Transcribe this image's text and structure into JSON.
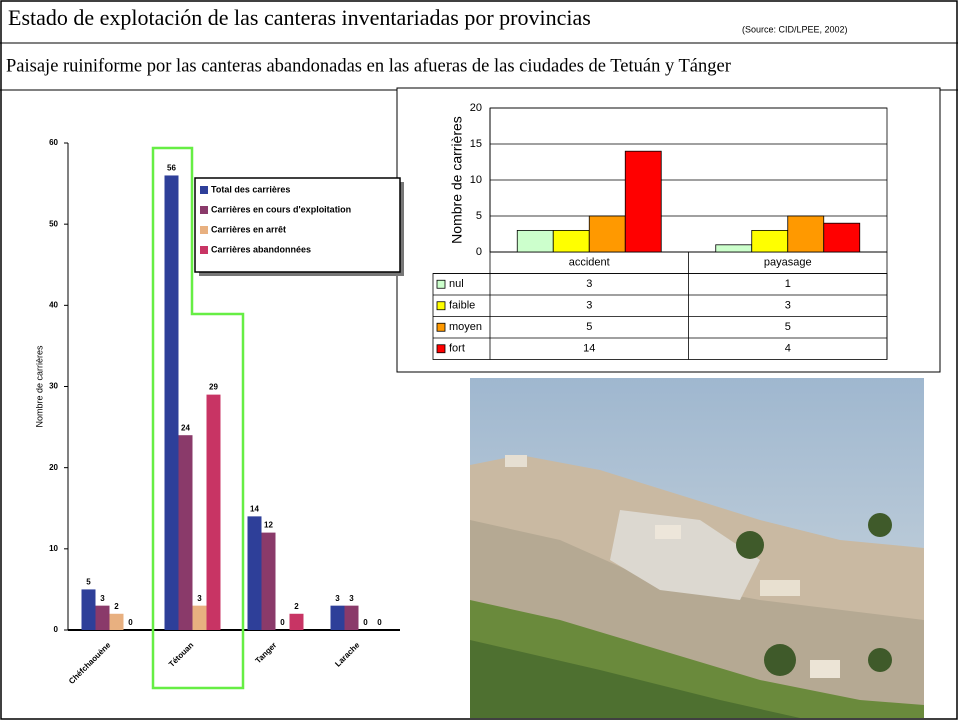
{
  "title": "Estado de explotación de las canteras inventariadas por provincias",
  "source": "(Source: CID/LPEE, 2002)",
  "subtitle": "Paisaje ruiniforme por las canteras abandonadas en las afueras de las ciudades de Tetuán y Tánger",
  "chart_data": [
    {
      "type": "bar",
      "ylabel": "Nombre de carrières",
      "categories": [
        "Chéfchaouène",
        "Tétouan",
        "Tanger",
        "Larache"
      ],
      "series": [
        {
          "name": "Total des carrières",
          "color": "#2e3f99",
          "values": [
            5,
            56,
            14,
            3
          ]
        },
        {
          "name": "Carrières en cours d'exploitation",
          "color": "#8a3a6a",
          "values": [
            3,
            24,
            12,
            3
          ]
        },
        {
          "name": "Carrières en arrêt",
          "color": "#e8b080",
          "values": [
            2,
            3,
            0,
            0
          ]
        },
        {
          "name": "Carrières abandonnées",
          "color": "#c83464",
          "values": [
            0,
            29,
            2,
            0
          ]
        }
      ],
      "ylim": [
        0,
        60
      ],
      "yticks": [
        0,
        10,
        20,
        30,
        40,
        50,
        60
      ],
      "grid": false
    },
    {
      "type": "bar",
      "ylabel": "Nombre de carrières",
      "categories": [
        "accident",
        "payasage"
      ],
      "series": [
        {
          "name": "nul",
          "color": "#ccffcc",
          "values": [
            3,
            1
          ]
        },
        {
          "name": "faible",
          "color": "#ffff00",
          "values": [
            3,
            3
          ]
        },
        {
          "name": "moyen",
          "color": "#ff9900",
          "values": [
            5,
            5
          ]
        },
        {
          "name": "fort",
          "color": "#ff0000",
          "values": [
            14,
            4
          ]
        }
      ],
      "ylim": [
        0,
        20
      ],
      "yticks": [
        0,
        5,
        10,
        15,
        20
      ],
      "grid": true
    }
  ]
}
